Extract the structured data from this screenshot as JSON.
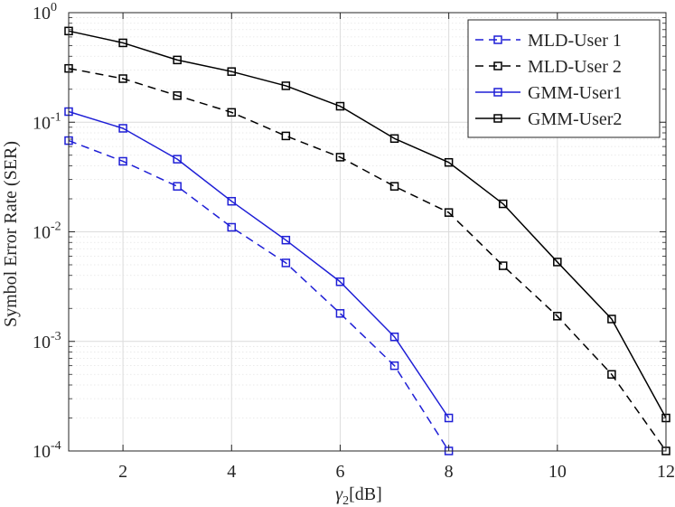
{
  "chart_data": {
    "type": "line",
    "title": "",
    "xlabel": {
      "symbol": "γ",
      "subscript": "2",
      "unit": "[dB]"
    },
    "ylabel": "Symbol Error Rate (SER)",
    "xlim": [
      1,
      12
    ],
    "ylim": [
      0.0001,
      1
    ],
    "yscale": "log",
    "grid": true,
    "x_ticks": [
      2,
      4,
      6,
      8,
      10,
      12
    ],
    "x_tick_labels": [
      "2",
      "4",
      "6",
      "8",
      "10",
      "12"
    ],
    "y_ticks": [
      {
        "value": 1,
        "base": "10",
        "exp": "0"
      },
      {
        "value": 0.1,
        "base": "10",
        "exp": "-1"
      },
      {
        "value": 0.01,
        "base": "10",
        "exp": "-2"
      },
      {
        "value": 0.001,
        "base": "10",
        "exp": "-3"
      },
      {
        "value": 0.0001,
        "base": "10",
        "exp": "-4"
      }
    ],
    "legend_position": "top-right",
    "series": [
      {
        "name": "MLD-User 1",
        "color": "#1f1fd6",
        "dashed": true,
        "x": [
          1,
          2,
          3,
          4,
          5,
          6,
          7,
          8
        ],
        "y": [
          0.068,
          0.044,
          0.026,
          0.011,
          0.0052,
          0.0018,
          0.0006,
          0.0001
        ]
      },
      {
        "name": "MLD-User 2",
        "color": "#000000",
        "dashed": true,
        "x": [
          1,
          2,
          3,
          4,
          5,
          6,
          7,
          8,
          9,
          10,
          11,
          12
        ],
        "y": [
          0.31,
          0.25,
          0.175,
          0.123,
          0.075,
          0.048,
          0.026,
          0.015,
          0.0049,
          0.0017,
          0.0005,
          0.0001
        ]
      },
      {
        "name": "GMM-User1",
        "color": "#1f1fd6",
        "dashed": false,
        "x": [
          1,
          2,
          3,
          4,
          5,
          6,
          7,
          8
        ],
        "y": [
          0.125,
          0.088,
          0.046,
          0.019,
          0.0084,
          0.0035,
          0.0011,
          0.0002
        ]
      },
      {
        "name": "GMM-User2",
        "color": "#000000",
        "dashed": false,
        "x": [
          1,
          2,
          3,
          4,
          5,
          6,
          7,
          8,
          9,
          10,
          11,
          12
        ],
        "y": [
          0.68,
          0.53,
          0.37,
          0.29,
          0.215,
          0.14,
          0.071,
          0.043,
          0.018,
          0.0053,
          0.0016,
          0.0002
        ]
      }
    ]
  }
}
